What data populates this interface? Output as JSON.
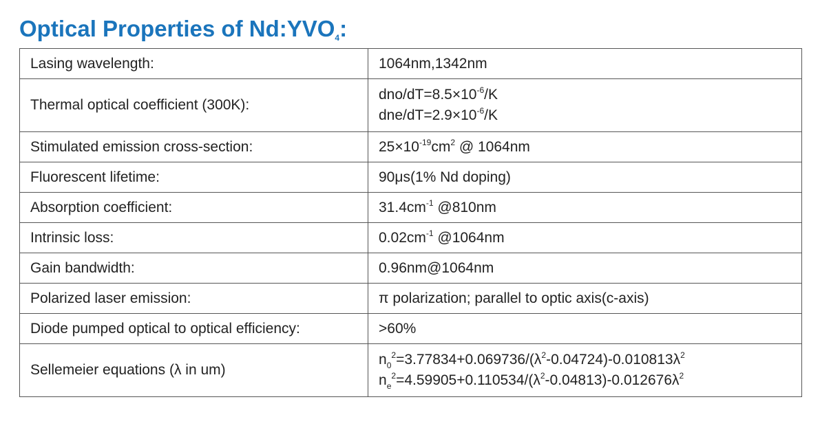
{
  "title": [
    {
      "text": "Optical Properties of Nd:YVO"
    },
    {
      "text": "4",
      "style": "sub"
    },
    {
      "text": ":"
    }
  ],
  "table": {
    "rows": [
      {
        "label": "Lasing wavelength:",
        "value": [
          [
            {
              "text": "1064nm,1342nm"
            }
          ]
        ]
      },
      {
        "label": "Thermal optical coefficient (300K):",
        "value": [
          [
            {
              "text": "dno/dT=8.5×10"
            },
            {
              "text": "-6",
              "style": "sup"
            },
            {
              "text": "/K"
            }
          ],
          [
            {
              "text": "dne/dT=2.9×10"
            },
            {
              "text": "-6",
              "style": "sup"
            },
            {
              "text": "/K"
            }
          ]
        ]
      },
      {
        "label": "Stimulated emission cross-section:",
        "value": [
          [
            {
              "text": "25×10"
            },
            {
              "text": "-19",
              "style": "sup"
            },
            {
              "text": "cm"
            },
            {
              "text": "2",
              "style": "sup"
            },
            {
              "text": " @ 1064nm"
            }
          ]
        ]
      },
      {
        "label": "Fluorescent lifetime:",
        "value": [
          [
            {
              "text": "90μs(1% Nd doping)"
            }
          ]
        ]
      },
      {
        "label": "Absorption coefficient:",
        "value": [
          [
            {
              "text": "31.4cm"
            },
            {
              "text": "-1",
              "style": "sup"
            },
            {
              "text": " @810nm"
            }
          ]
        ]
      },
      {
        "label": "Intrinsic loss:",
        "value": [
          [
            {
              "text": "0.02cm"
            },
            {
              "text": "-1",
              "style": "sup"
            },
            {
              "text": " @1064nm"
            }
          ]
        ]
      },
      {
        "label": "Gain bandwidth:",
        "value": [
          [
            {
              "text": "0.96nm@1064nm"
            }
          ]
        ]
      },
      {
        "label": "Polarized laser emission:",
        "value": [
          [
            {
              "text": "π polarization; parallel to optic axis(c-axis)"
            }
          ]
        ]
      },
      {
        "label": "Diode pumped optical to optical efficiency:",
        "value": [
          [
            {
              "text": ">60%"
            }
          ]
        ]
      },
      {
        "label": "Sellemeier equations (λ in um)",
        "value": [
          [
            {
              "text": "n"
            },
            {
              "text": "0",
              "style": "sub"
            },
            {
              "text": "2",
              "style": "sup"
            },
            {
              "text": "=3.77834+0.069736/(λ"
            },
            {
              "text": "2",
              "style": "sup"
            },
            {
              "text": "-0.04724)-0.010813λ"
            },
            {
              "text": "2",
              "style": "sup"
            }
          ],
          [
            {
              "text": "n"
            },
            {
              "text": "e",
              "style": "sub"
            },
            {
              "text": "2",
              "style": "sup"
            },
            {
              "text": "=4.59905+0.110534/(λ"
            },
            {
              "text": "2",
              "style": "sup"
            },
            {
              "text": "-0.04813)-0.012676λ"
            },
            {
              "text": "2",
              "style": "sup"
            }
          ]
        ]
      }
    ]
  }
}
